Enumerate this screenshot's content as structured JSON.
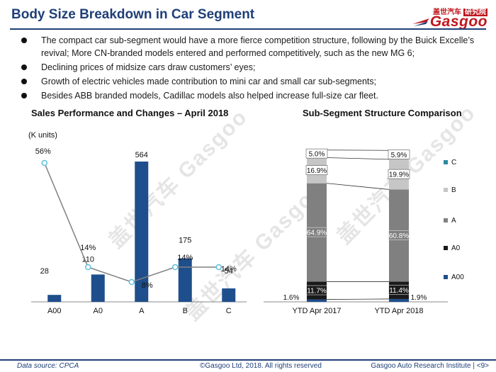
{
  "header": {
    "title": "Body Size Breakdown in Car Segment",
    "logo_cn": "盖世汽车",
    "logo_tag": "研究院",
    "logo_en": "Gasgoo"
  },
  "bullets": [
    "The compact car sub-segment would have a more fierce competition structure, following by the Buick Excelle’s revival; More CN-branded models entered and performed competitively, such as the new MG 6;",
    "Declining prices of midsize cars draw customers’ eyes;",
    "Growth of electric vehicles made contribution to mini car and small car sub-segments;",
    "Besides ABB branded models, Cadillac models also helped increase full-size car fleet."
  ],
  "watermark": "盖世汽车 Gasgoo",
  "chart_data": [
    {
      "type": "bar",
      "title": "Sales Performance and Changes – April 2018",
      "ylabel": "(K units)",
      "categories": [
        "A00",
        "A0",
        "A",
        "B",
        "C"
      ],
      "series": [
        {
          "name": "Sales",
          "values": [
            28,
            110,
            564,
            175,
            54
          ],
          "labels": [
            "28",
            "110",
            "564",
            "175",
            "54"
          ]
        },
        {
          "name": "Change",
          "kind": "line",
          "values": [
            56,
            14,
            8,
            14,
            14
          ],
          "labels": [
            "56%",
            "14%",
            "8%",
            "14%",
            "14%"
          ]
        }
      ],
      "colors": {
        "bar": "#1f4e8c",
        "line": "#808080",
        "marker": "#5bc0de"
      }
    },
    {
      "type": "bar",
      "stacked": true,
      "title": "Sub-Segment Structure Comparison",
      "categories": [
        "YTD Apr 2017",
        "YTD Apr 2018"
      ],
      "series": [
        {
          "name": "A00",
          "values": [
            1.6,
            1.9
          ],
          "labels": [
            "1.6%",
            "1.9%"
          ],
          "color": "#1f4e8c"
        },
        {
          "name": "A0",
          "values": [
            11.7,
            11.4
          ],
          "labels": [
            "11.7%",
            "11.4%"
          ],
          "color": "#1a1a1a"
        },
        {
          "name": "A",
          "values": [
            64.9,
            60.8
          ],
          "labels": [
            "64.9%",
            "60.8%"
          ],
          "color": "#808080"
        },
        {
          "name": "B",
          "values": [
            16.9,
            19.9
          ],
          "labels": [
            "16.9%",
            "19.9%"
          ],
          "color": "#c6c6c6"
        },
        {
          "name": "C",
          "values": [
            5.0,
            5.9
          ],
          "labels": [
            "5.0%",
            "5.9%"
          ],
          "color": "#2a8aa0"
        }
      ],
      "legend": [
        "C",
        "B",
        "A",
        "A0",
        "A00"
      ]
    }
  ],
  "footer": {
    "source": "Data source: CPCA",
    "copyright": "©Gasgoo Ltd, 2018.  All rights reserved",
    "institute": "Gasgoo Auto Research Institute",
    "page": "<9>"
  }
}
